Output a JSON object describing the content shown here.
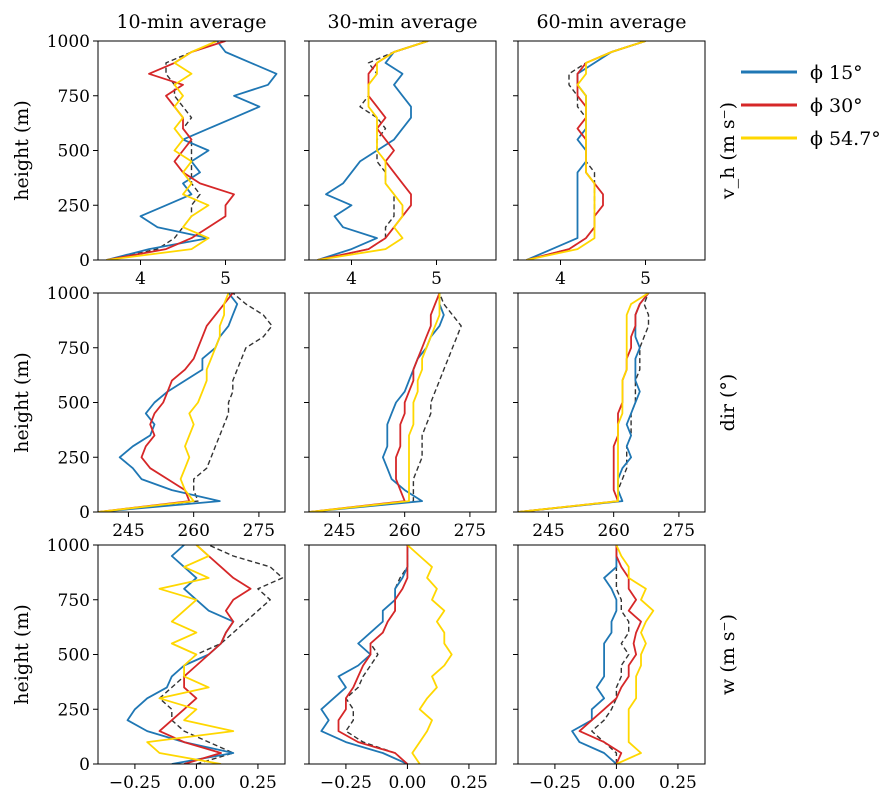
{
  "chart_data": {
    "type": "line",
    "columns": [
      {
        "title": "10-min average"
      },
      {
        "title": "30-min average"
      },
      {
        "title": "60-min average"
      }
    ],
    "rows": [
      {
        "key": "vh",
        "ylabel": "height (m)",
        "row_label": "v_h (m s⁻)",
        "xlim": [
          3.5,
          5.7
        ],
        "xticks": [
          "4",
          "5"
        ],
        "xtick_values": [
          4,
          5
        ]
      },
      {
        "key": "dir",
        "ylabel": "height (m)",
        "row_label": "dir (°)",
        "xlim": [
          238,
          281
        ],
        "xticks": [
          "245",
          "260",
          "275"
        ],
        "xtick_values": [
          245,
          260,
          275
        ]
      },
      {
        "key": "w",
        "ylabel": "height (m)",
        "row_label": "w (m s⁻)",
        "xlim": [
          -0.4,
          0.36
        ],
        "xticks": [
          "−0.25",
          "0.00",
          "0.25"
        ],
        "xtick_values": [
          -0.25,
          0.0,
          0.25
        ]
      }
    ],
    "ylim": [
      0,
      1000
    ],
    "yticks": [
      "0",
      "250",
      "500",
      "750",
      "1000"
    ],
    "ytick_values": [
      0,
      250,
      500,
      750,
      1000
    ],
    "legend": {
      "placement": "right",
      "entries": [
        {
          "name": "ϕ 15°",
          "color": "#1f77b4"
        },
        {
          "name": "ϕ 30°",
          "color": "#d62728"
        },
        {
          "name": "ϕ 54.7°",
          "color": "#ffd700"
        }
      ]
    },
    "series_colors": {
      "p15": "#1f77b4",
      "p30": "#d62728",
      "p547": "#ffd700",
      "ref": "#333333"
    },
    "heights": [
      0,
      50,
      100,
      150,
      200,
      250,
      300,
      350,
      400,
      450,
      500,
      550,
      600,
      650,
      700,
      750,
      800,
      850,
      900,
      950,
      1000
    ],
    "panels": [
      [
        {
          "p15": [
            3.6,
            4.1,
            4.8,
            4.2,
            4.0,
            4.3,
            4.6,
            4.5,
            4.7,
            4.6,
            4.8,
            4.5,
            4.8,
            5.1,
            5.4,
            5.1,
            5.5,
            5.6,
            5.3,
            5.0,
            4.9
          ],
          "p30": [
            3.6,
            4.3,
            4.6,
            4.8,
            5.0,
            5.0,
            5.1,
            4.7,
            4.5,
            4.4,
            4.5,
            4.6,
            4.5,
            4.5,
            4.4,
            4.3,
            4.5,
            4.1,
            4.4,
            4.6,
            5.0
          ],
          "p547": [
            3.6,
            4.6,
            4.8,
            4.5,
            4.6,
            4.8,
            4.5,
            4.6,
            4.5,
            4.6,
            4.4,
            4.5,
            4.4,
            4.5,
            4.4,
            4.5,
            4.4,
            4.6,
            4.4,
            4.6,
            4.9
          ],
          "ref": [
            3.6,
            4.2,
            4.4,
            4.5,
            4.6,
            4.6,
            4.7,
            4.6,
            4.6,
            4.6,
            4.6,
            4.6,
            4.5,
            4.6,
            4.5,
            4.4,
            4.4,
            4.3,
            4.3,
            4.6,
            4.9
          ]
        },
        {
          "p15": [
            3.6,
            4.0,
            4.3,
            3.9,
            3.8,
            4.0,
            3.7,
            3.9,
            4.0,
            4.1,
            4.3,
            4.5,
            4.6,
            4.7,
            4.7,
            4.6,
            4.5,
            4.6,
            4.4,
            4.5,
            4.9
          ],
          "p30": [
            3.6,
            4.2,
            4.4,
            4.5,
            4.6,
            4.7,
            4.7,
            4.6,
            4.5,
            4.4,
            4.5,
            4.4,
            4.3,
            4.4,
            4.3,
            4.2,
            4.2,
            4.2,
            4.3,
            4.5,
            4.9
          ],
          "p547": [
            3.6,
            4.4,
            4.6,
            4.5,
            4.6,
            4.6,
            4.5,
            4.4,
            4.4,
            4.4,
            4.3,
            4.3,
            4.3,
            4.3,
            4.2,
            4.2,
            4.2,
            4.3,
            4.3,
            4.5,
            4.9
          ],
          "ref": [
            3.6,
            4.2,
            4.4,
            4.4,
            4.5,
            4.5,
            4.5,
            4.4,
            4.4,
            4.3,
            4.3,
            4.3,
            4.4,
            4.3,
            4.1,
            4.2,
            4.2,
            4.3,
            4.2,
            4.5,
            4.9
          ]
        },
        {
          "p15": [
            3.6,
            3.9,
            4.2,
            4.2,
            4.2,
            4.2,
            4.2,
            4.2,
            4.2,
            4.3,
            4.3,
            4.2,
            4.3,
            4.3,
            4.3,
            4.3,
            4.2,
            4.2,
            4.4,
            4.6,
            5.0
          ],
          "p30": [
            3.6,
            4.1,
            4.3,
            4.4,
            4.4,
            4.5,
            4.5,
            4.4,
            4.3,
            4.3,
            4.3,
            4.3,
            4.2,
            4.3,
            4.3,
            4.2,
            4.2,
            4.2,
            4.3,
            4.6,
            5.0
          ],
          "p547": [
            3.6,
            4.2,
            4.4,
            4.4,
            4.4,
            4.4,
            4.4,
            4.4,
            4.3,
            4.3,
            4.3,
            4.3,
            4.3,
            4.3,
            4.3,
            4.3,
            4.2,
            4.3,
            4.3,
            4.6,
            5.0
          ],
          "ref": [
            3.6,
            4.1,
            4.3,
            4.4,
            4.4,
            4.4,
            4.4,
            4.4,
            4.4,
            4.3,
            4.3,
            4.3,
            4.2,
            4.3,
            4.2,
            4.2,
            4.1,
            4.1,
            4.3,
            4.6,
            5.0
          ]
        }
      ],
      [
        {
          "p15": [
            238,
            266,
            255,
            248,
            246,
            243,
            246,
            250,
            251,
            249,
            251,
            254,
            258,
            262,
            262,
            265,
            266,
            268,
            269,
            270,
            268
          ],
          "p30": [
            238,
            259,
            258,
            254,
            250,
            248,
            249,
            251,
            250,
            251,
            253,
            254,
            255,
            258,
            260,
            261,
            262,
            263,
            265,
            267,
            269
          ],
          "p547": [
            238,
            260,
            258,
            257,
            258,
            259,
            258,
            259,
            260,
            259,
            261,
            262,
            263,
            263,
            264,
            265,
            266,
            266,
            267,
            267,
            268
          ],
          "ref": [
            238,
            261,
            260,
            260,
            263,
            264,
            265,
            266,
            267,
            268,
            268,
            269,
            269,
            270,
            271,
            272,
            276,
            278,
            276,
            272,
            269
          ]
        },
        {
          "p15": [
            238,
            264,
            260,
            257,
            256,
            255,
            256,
            256,
            256,
            257,
            258,
            260,
            261,
            262,
            263,
            265,
            266,
            268,
            269,
            268,
            268
          ],
          "p30": [
            238,
            260,
            259,
            258,
            258,
            258,
            259,
            259,
            259,
            260,
            260,
            261,
            262,
            262,
            263,
            264,
            265,
            266,
            266,
            267,
            268
          ],
          "p547": [
            238,
            261,
            261,
            261,
            261,
            261,
            261,
            261,
            262,
            262,
            262,
            263,
            263,
            264,
            264,
            265,
            266,
            267,
            268,
            268,
            268
          ],
          "ref": [
            238,
            262,
            262,
            262,
            263,
            264,
            264,
            264,
            265,
            266,
            266,
            267,
            268,
            269,
            270,
            271,
            272,
            273,
            271,
            269,
            268
          ]
        },
        {
          "p15": [
            238,
            262,
            261,
            261,
            262,
            264,
            263,
            264,
            263,
            264,
            265,
            266,
            265,
            265,
            265,
            266,
            265,
            265,
            265,
            266,
            268
          ],
          "p30": [
            238,
            261,
            260,
            260,
            260,
            260,
            260,
            261,
            261,
            261,
            262,
            262,
            262,
            263,
            263,
            264,
            264,
            265,
            265,
            266,
            268
          ],
          "p547": [
            238,
            261,
            261,
            261,
            261,
            261,
            261,
            261,
            261,
            262,
            262,
            262,
            262,
            263,
            263,
            263,
            263,
            263,
            263,
            264,
            268
          ],
          "ref": [
            238,
            262,
            261,
            262,
            263,
            263,
            263,
            264,
            264,
            264,
            265,
            265,
            265,
            266,
            266,
            266,
            267,
            268,
            268,
            267,
            268
          ]
        }
      ],
      [
        {
          "p15": [
            -0.1,
            0.15,
            -0.05,
            -0.2,
            -0.28,
            -0.25,
            -0.2,
            -0.12,
            -0.1,
            -0.05,
            0.05,
            0.1,
            0.12,
            0.15,
            0.05,
            0.0,
            -0.05,
            0.0,
            -0.05,
            -0.1,
            -0.05
          ],
          "p30": [
            -0.05,
            0.1,
            -0.05,
            -0.15,
            -0.1,
            -0.05,
            0.0,
            -0.05,
            -0.05,
            0.0,
            0.05,
            0.1,
            0.12,
            0.15,
            0.12,
            0.15,
            0.22,
            0.15,
            0.1,
            0.05,
            0.0
          ],
          "p547": [
            0.1,
            -0.15,
            -0.2,
            0.15,
            -0.05,
            0.0,
            -0.15,
            0.05,
            -0.05,
            -0.05,
            0.0,
            -0.1,
            0.0,
            -0.1,
            -0.05,
            0.0,
            -0.15,
            0.05,
            -0.05,
            0.05,
            0.0
          ],
          "ref": [
            0.0,
            0.15,
            0.05,
            -0.05,
            -0.1,
            -0.1,
            -0.15,
            -0.1,
            -0.05,
            -0.05,
            0.0,
            0.1,
            0.15,
            0.2,
            0.25,
            0.3,
            0.25,
            0.35,
            0.3,
            0.15,
            0.05
          ]
        },
        {
          "p15": [
            0.0,
            -0.1,
            -0.25,
            -0.35,
            -0.32,
            -0.35,
            -0.3,
            -0.25,
            -0.28,
            -0.2,
            -0.15,
            -0.2,
            -0.15,
            -0.1,
            -0.1,
            -0.05,
            -0.05,
            -0.02,
            0.0,
            0.0,
            0.0
          ],
          "p30": [
            0.0,
            -0.05,
            -0.2,
            -0.28,
            -0.28,
            -0.25,
            -0.25,
            -0.22,
            -0.2,
            -0.18,
            -0.15,
            -0.15,
            -0.1,
            -0.08,
            -0.05,
            -0.05,
            -0.02,
            0.0,
            0.0,
            0.0,
            0.0
          ],
          "p547": [
            0.05,
            0.02,
            0.05,
            0.08,
            0.1,
            0.05,
            0.08,
            0.12,
            0.1,
            0.15,
            0.18,
            0.15,
            0.15,
            0.12,
            0.15,
            0.1,
            0.12,
            0.08,
            0.1,
            0.05,
            0.0
          ],
          "ref": [
            0.0,
            -0.05,
            -0.18,
            -0.25,
            -0.22,
            -0.22,
            -0.25,
            -0.2,
            -0.18,
            -0.15,
            -0.12,
            -0.15,
            -0.1,
            -0.08,
            -0.05,
            -0.05,
            -0.05,
            -0.03,
            0.0,
            0.0,
            0.0
          ]
        },
        {
          "p15": [
            0.0,
            -0.05,
            -0.15,
            -0.18,
            -0.1,
            -0.1,
            -0.05,
            -0.08,
            -0.05,
            -0.05,
            -0.05,
            -0.05,
            -0.02,
            -0.02,
            0.0,
            0.0,
            -0.02,
            -0.05,
            0.0,
            0.0,
            0.0
          ],
          "p30": [
            0.0,
            0.02,
            -0.05,
            -0.15,
            -0.1,
            -0.05,
            0.0,
            0.02,
            0.05,
            0.05,
            0.08,
            0.07,
            0.08,
            0.1,
            0.05,
            0.08,
            0.05,
            0.05,
            0.02,
            0.0,
            0.0
          ],
          "p547": [
            0.0,
            0.1,
            0.05,
            0.05,
            0.05,
            0.05,
            0.08,
            0.08,
            0.08,
            0.1,
            0.1,
            0.12,
            0.1,
            0.12,
            0.15,
            0.1,
            0.12,
            0.05,
            0.05,
            0.02,
            0.0
          ],
          "ref": [
            0.0,
            0.0,
            -0.05,
            -0.1,
            -0.05,
            -0.02,
            0.0,
            0.0,
            0.02,
            0.02,
            0.05,
            0.02,
            0.05,
            0.05,
            0.02,
            0.02,
            0.0,
            0.0,
            0.0,
            0.0,
            0.0
          ]
        }
      ]
    ]
  }
}
